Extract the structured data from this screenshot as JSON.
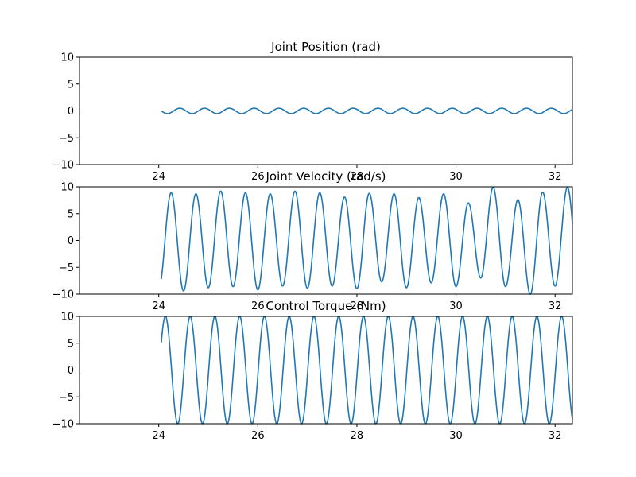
{
  "chart_data": [
    {
      "type": "line",
      "title": "Joint Position (rad)",
      "xlabel": "",
      "ylabel": "",
      "xlim": [
        22.4,
        32.35
      ],
      "ylim": [
        -10,
        10
      ],
      "xticks": [
        24,
        26,
        28,
        30,
        32
      ],
      "xtick_labels": [
        "24",
        "26",
        "28",
        "30",
        "32"
      ],
      "yticks": [
        10,
        5,
        0,
        -5,
        -10
      ],
      "ytick_labels": [
        "10",
        "5",
        "0",
        "−5",
        "−10"
      ],
      "grid": false,
      "color": "#1f77b4",
      "signal": {
        "t_start": 24.05,
        "t_end": 32.35,
        "period": 0.5,
        "amplitude": 0.5,
        "phase_deg": 180,
        "offset": 0
      }
    },
    {
      "type": "line",
      "title": "Joint Velocity (rad/s)",
      "xlabel": "",
      "ylabel": "",
      "xlim": [
        22.4,
        32.35
      ],
      "ylim": [
        -10,
        10
      ],
      "xticks": [
        24,
        26,
        28,
        30,
        32
      ],
      "xtick_labels": [
        "24",
        "26",
        "28",
        "30",
        "32"
      ],
      "yticks": [
        10,
        5,
        0,
        -5,
        -10
      ],
      "ytick_labels": [
        "10",
        "5",
        "0",
        "−5",
        "−10"
      ],
      "grid": false,
      "color": "#1f77b4",
      "signal": {
        "t_start": 24.05,
        "t_end": 32.35,
        "period": 0.5,
        "amplitude": 9,
        "phase_deg": -45,
        "offset": 0
      },
      "peaks": [
        {
          "x": 24.25,
          "y": 8.9
        },
        {
          "x": 24.5,
          "y": -9.4
        },
        {
          "x": 24.75,
          "y": 8.7
        },
        {
          "x": 25.0,
          "y": -8.8
        },
        {
          "x": 25.25,
          "y": 9.2
        },
        {
          "x": 25.5,
          "y": -8.6
        },
        {
          "x": 25.75,
          "y": 8.9
        },
        {
          "x": 26.0,
          "y": -9.2
        },
        {
          "x": 26.25,
          "y": 8.7
        },
        {
          "x": 26.5,
          "y": -8.5
        },
        {
          "x": 26.75,
          "y": 9.2
        },
        {
          "x": 27.0,
          "y": -8.9
        },
        {
          "x": 27.25,
          "y": 8.9
        },
        {
          "x": 27.5,
          "y": -8.5
        },
        {
          "x": 27.75,
          "y": 8.1
        },
        {
          "x": 28.0,
          "y": -9.0
        },
        {
          "x": 28.25,
          "y": 8.8
        },
        {
          "x": 28.5,
          "y": -7.7
        },
        {
          "x": 28.75,
          "y": 8.7
        },
        {
          "x": 29.0,
          "y": -8.8
        },
        {
          "x": 29.25,
          "y": 8.0
        },
        {
          "x": 29.5,
          "y": -7.9
        },
        {
          "x": 29.75,
          "y": 8.7
        },
        {
          "x": 30.0,
          "y": -8.6
        },
        {
          "x": 30.25,
          "y": 7.0
        },
        {
          "x": 30.5,
          "y": -7.0
        },
        {
          "x": 30.75,
          "y": 9.9
        },
        {
          "x": 31.0,
          "y": -8.6
        },
        {
          "x": 31.25,
          "y": 7.6
        },
        {
          "x": 31.5,
          "y": -10.0
        },
        {
          "x": 31.75,
          "y": 9.0
        },
        {
          "x": 32.0,
          "y": -8.5
        },
        {
          "x": 32.25,
          "y": 9.9
        }
      ]
    },
    {
      "type": "line",
      "title": "Control Torque (Nm)",
      "xlabel": "",
      "ylabel": "",
      "xlim": [
        22.4,
        32.35
      ],
      "ylim": [
        -10,
        10
      ],
      "xticks": [
        24,
        26,
        28,
        30,
        32
      ],
      "xtick_labels": [
        "24",
        "26",
        "28",
        "30",
        "32"
      ],
      "yticks": [
        10,
        5,
        0,
        -5,
        -10
      ],
      "ytick_labels": [
        "10",
        "5",
        "0",
        "−5",
        "−10"
      ],
      "grid": false,
      "color": "#1f77b4",
      "signal": {
        "t_start": 24.05,
        "t_end": 32.35,
        "period": 0.5,
        "amplitude": 10,
        "phase_deg": 30,
        "offset": 0
      }
    }
  ]
}
